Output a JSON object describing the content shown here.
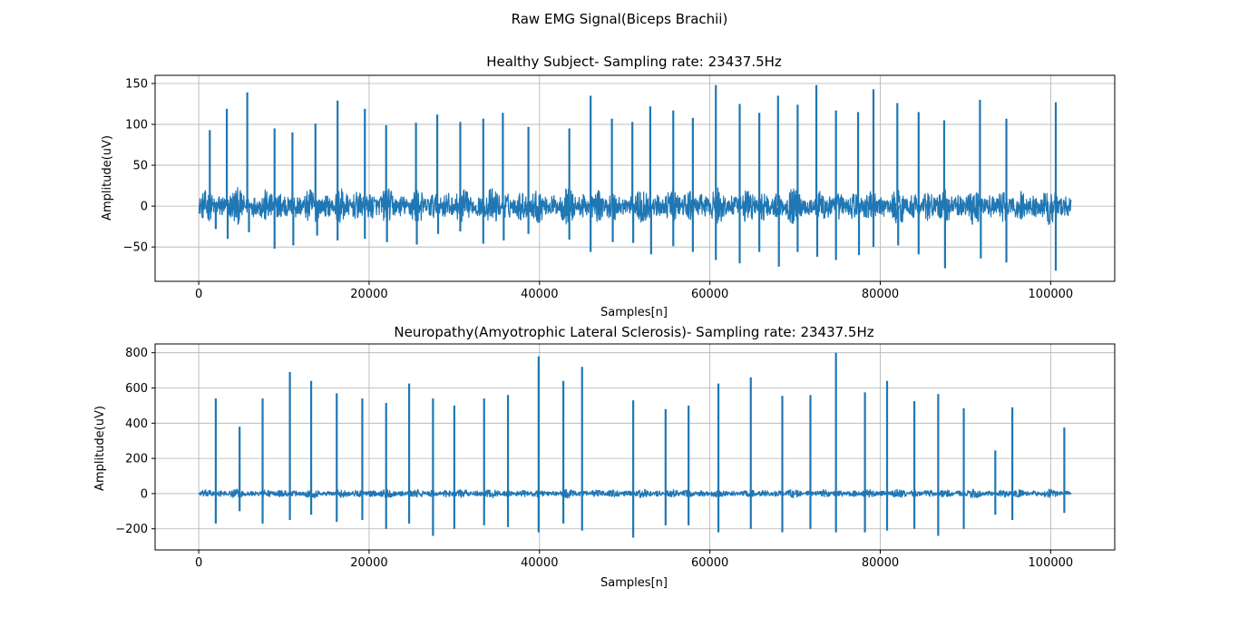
{
  "figure_title": "Raw EMG Signal(Biceps Brachii)",
  "colors": {
    "line": "#1f77b4",
    "grid": "#b0b0b0",
    "axes": "#000000"
  },
  "chart_data": [
    {
      "type": "line",
      "title": "Healthy Subject- Sampling rate: 23437.5Hz",
      "xlabel": "Samples[n]",
      "ylabel": "Amplitude(uV)",
      "xlim": [
        -5120,
        107520
      ],
      "ylim": [
        -92,
        160
      ],
      "x_ticks": [
        0,
        20000,
        40000,
        60000,
        80000,
        100000
      ],
      "x_tick_labels": [
        "0",
        "20000",
        "40000",
        "60000",
        "80000",
        "100000"
      ],
      "y_ticks": [
        -50,
        0,
        50,
        100,
        150
      ],
      "y_tick_labels": [
        "−50",
        "0",
        "50",
        "100",
        "150"
      ],
      "grid": true,
      "series": [
        {
          "x_range": [
            0,
            102400
          ],
          "noise_amplitude": 18,
          "spikes": [
            {
              "x": 1300,
              "y": 93
            },
            {
              "x": 2000,
              "y": -28
            },
            {
              "x": 3300,
              "y": 119
            },
            {
              "x": 3400,
              "y": -40
            },
            {
              "x": 5700,
              "y": 139
            },
            {
              "x": 5900,
              "y": -32
            },
            {
              "x": 8900,
              "y": 95
            },
            {
              "x": 8900,
              "y": -52
            },
            {
              "x": 11000,
              "y": 90
            },
            {
              "x": 11100,
              "y": -48
            },
            {
              "x": 13700,
              "y": 101
            },
            {
              "x": 13900,
              "y": -36
            },
            {
              "x": 16300,
              "y": 129
            },
            {
              "x": 16300,
              "y": -42
            },
            {
              "x": 19500,
              "y": 119
            },
            {
              "x": 19500,
              "y": -40
            },
            {
              "x": 22000,
              "y": 99
            },
            {
              "x": 22100,
              "y": -44
            },
            {
              "x": 25500,
              "y": 102
            },
            {
              "x": 25600,
              "y": -47
            },
            {
              "x": 28000,
              "y": 112
            },
            {
              "x": 28100,
              "y": -34
            },
            {
              "x": 30700,
              "y": 103
            },
            {
              "x": 30700,
              "y": -31
            },
            {
              "x": 33400,
              "y": 107
            },
            {
              "x": 33400,
              "y": -46
            },
            {
              "x": 35700,
              "y": 114
            },
            {
              "x": 35800,
              "y": -42
            },
            {
              "x": 38700,
              "y": 97
            },
            {
              "x": 38700,
              "y": -34
            },
            {
              "x": 43500,
              "y": 95
            },
            {
              "x": 43500,
              "y": -41
            },
            {
              "x": 46000,
              "y": 135
            },
            {
              "x": 46000,
              "y": -56
            },
            {
              "x": 48500,
              "y": 107
            },
            {
              "x": 48600,
              "y": -44
            },
            {
              "x": 50900,
              "y": 103
            },
            {
              "x": 51000,
              "y": -45
            },
            {
              "x": 53000,
              "y": 122
            },
            {
              "x": 53100,
              "y": -59
            },
            {
              "x": 55700,
              "y": 117
            },
            {
              "x": 55700,
              "y": -49
            },
            {
              "x": 58000,
              "y": 108
            },
            {
              "x": 58000,
              "y": -56
            },
            {
              "x": 60700,
              "y": 148
            },
            {
              "x": 60700,
              "y": -66
            },
            {
              "x": 63500,
              "y": 125
            },
            {
              "x": 63500,
              "y": -70
            },
            {
              "x": 65800,
              "y": 114
            },
            {
              "x": 65800,
              "y": -56
            },
            {
              "x": 68000,
              "y": 135
            },
            {
              "x": 68100,
              "y": -74
            },
            {
              "x": 70300,
              "y": 124
            },
            {
              "x": 70300,
              "y": -56
            },
            {
              "x": 72500,
              "y": 148
            },
            {
              "x": 72600,
              "y": -62
            },
            {
              "x": 74800,
              "y": 117
            },
            {
              "x": 74800,
              "y": -66
            },
            {
              "x": 77400,
              "y": 115
            },
            {
              "x": 77500,
              "y": -60
            },
            {
              "x": 79200,
              "y": 143
            },
            {
              "x": 79200,
              "y": -50
            },
            {
              "x": 82000,
              "y": 126
            },
            {
              "x": 82100,
              "y": -48
            },
            {
              "x": 84500,
              "y": 115
            },
            {
              "x": 84500,
              "y": -59
            },
            {
              "x": 87500,
              "y": 105
            },
            {
              "x": 87600,
              "y": -76
            },
            {
              "x": 91700,
              "y": 130
            },
            {
              "x": 91800,
              "y": -64
            },
            {
              "x": 94800,
              "y": 107
            },
            {
              "x": 94800,
              "y": -69
            },
            {
              "x": 100600,
              "y": 127
            },
            {
              "x": 100600,
              "y": -79
            }
          ]
        }
      ]
    },
    {
      "type": "line",
      "title": "Neuropathy(Amyotrophic Lateral Sclerosis)- Sampling rate: 23437.5Hz",
      "xlabel": "Samples[n]",
      "ylabel": "Amplitude(uV)",
      "xlim": [
        -5120,
        107520
      ],
      "ylim": [
        -320,
        850
      ],
      "x_ticks": [
        0,
        20000,
        40000,
        60000,
        80000,
        100000
      ],
      "x_tick_labels": [
        "0",
        "20000",
        "40000",
        "60000",
        "80000",
        "100000"
      ],
      "y_ticks": [
        -200,
        0,
        200,
        400,
        600,
        800
      ],
      "y_tick_labels": [
        "−200",
        "0",
        "200",
        "400",
        "600",
        "800"
      ],
      "grid": true,
      "series": [
        {
          "x_range": [
            0,
            102400
          ],
          "noise_amplitude": 20,
          "spikes": [
            {
              "x": 2000,
              "y": 540
            },
            {
              "x": 2000,
              "y": -170
            },
            {
              "x": 4800,
              "y": 380
            },
            {
              "x": 4800,
              "y": -100
            },
            {
              "x": 7500,
              "y": 540
            },
            {
              "x": 7500,
              "y": -170
            },
            {
              "x": 10700,
              "y": 690
            },
            {
              "x": 10700,
              "y": -150
            },
            {
              "x": 13200,
              "y": 640
            },
            {
              "x": 13200,
              "y": -120
            },
            {
              "x": 16200,
              "y": 570
            },
            {
              "x": 16200,
              "y": -160
            },
            {
              "x": 19200,
              "y": 540
            },
            {
              "x": 19200,
              "y": -150
            },
            {
              "x": 22000,
              "y": 515
            },
            {
              "x": 22000,
              "y": -200
            },
            {
              "x": 24700,
              "y": 625
            },
            {
              "x": 24700,
              "y": -170
            },
            {
              "x": 27500,
              "y": 540
            },
            {
              "x": 27500,
              "y": -240
            },
            {
              "x": 30000,
              "y": 500
            },
            {
              "x": 30000,
              "y": -200
            },
            {
              "x": 33500,
              "y": 540
            },
            {
              "x": 33500,
              "y": -180
            },
            {
              "x": 36300,
              "y": 560
            },
            {
              "x": 36300,
              "y": -190
            },
            {
              "x": 39900,
              "y": 780
            },
            {
              "x": 39900,
              "y": -220
            },
            {
              "x": 42800,
              "y": 640
            },
            {
              "x": 42800,
              "y": -170
            },
            {
              "x": 45000,
              "y": 720
            },
            {
              "x": 45000,
              "y": -210
            },
            {
              "x": 51000,
              "y": 530
            },
            {
              "x": 51000,
              "y": -250
            },
            {
              "x": 54800,
              "y": 480
            },
            {
              "x": 54800,
              "y": -180
            },
            {
              "x": 57500,
              "y": 500
            },
            {
              "x": 57500,
              "y": -180
            },
            {
              "x": 61000,
              "y": 625
            },
            {
              "x": 61000,
              "y": -220
            },
            {
              "x": 64800,
              "y": 660
            },
            {
              "x": 64800,
              "y": -200
            },
            {
              "x": 68500,
              "y": 555
            },
            {
              "x": 68500,
              "y": -220
            },
            {
              "x": 71800,
              "y": 560
            },
            {
              "x": 71800,
              "y": -200
            },
            {
              "x": 74800,
              "y": 800
            },
            {
              "x": 74800,
              "y": -220
            },
            {
              "x": 78200,
              "y": 575
            },
            {
              "x": 78200,
              "y": -220
            },
            {
              "x": 80800,
              "y": 640
            },
            {
              "x": 80800,
              "y": -210
            },
            {
              "x": 84000,
              "y": 525
            },
            {
              "x": 84000,
              "y": -200
            },
            {
              "x": 86800,
              "y": 565
            },
            {
              "x": 86800,
              "y": -240
            },
            {
              "x": 89800,
              "y": 485
            },
            {
              "x": 89800,
              "y": -200
            },
            {
              "x": 93500,
              "y": 245
            },
            {
              "x": 93500,
              "y": -120
            },
            {
              "x": 95500,
              "y": 490
            },
            {
              "x": 95500,
              "y": -150
            },
            {
              "x": 101600,
              "y": 375
            },
            {
              "x": 101600,
              "y": -110
            }
          ]
        }
      ]
    }
  ]
}
